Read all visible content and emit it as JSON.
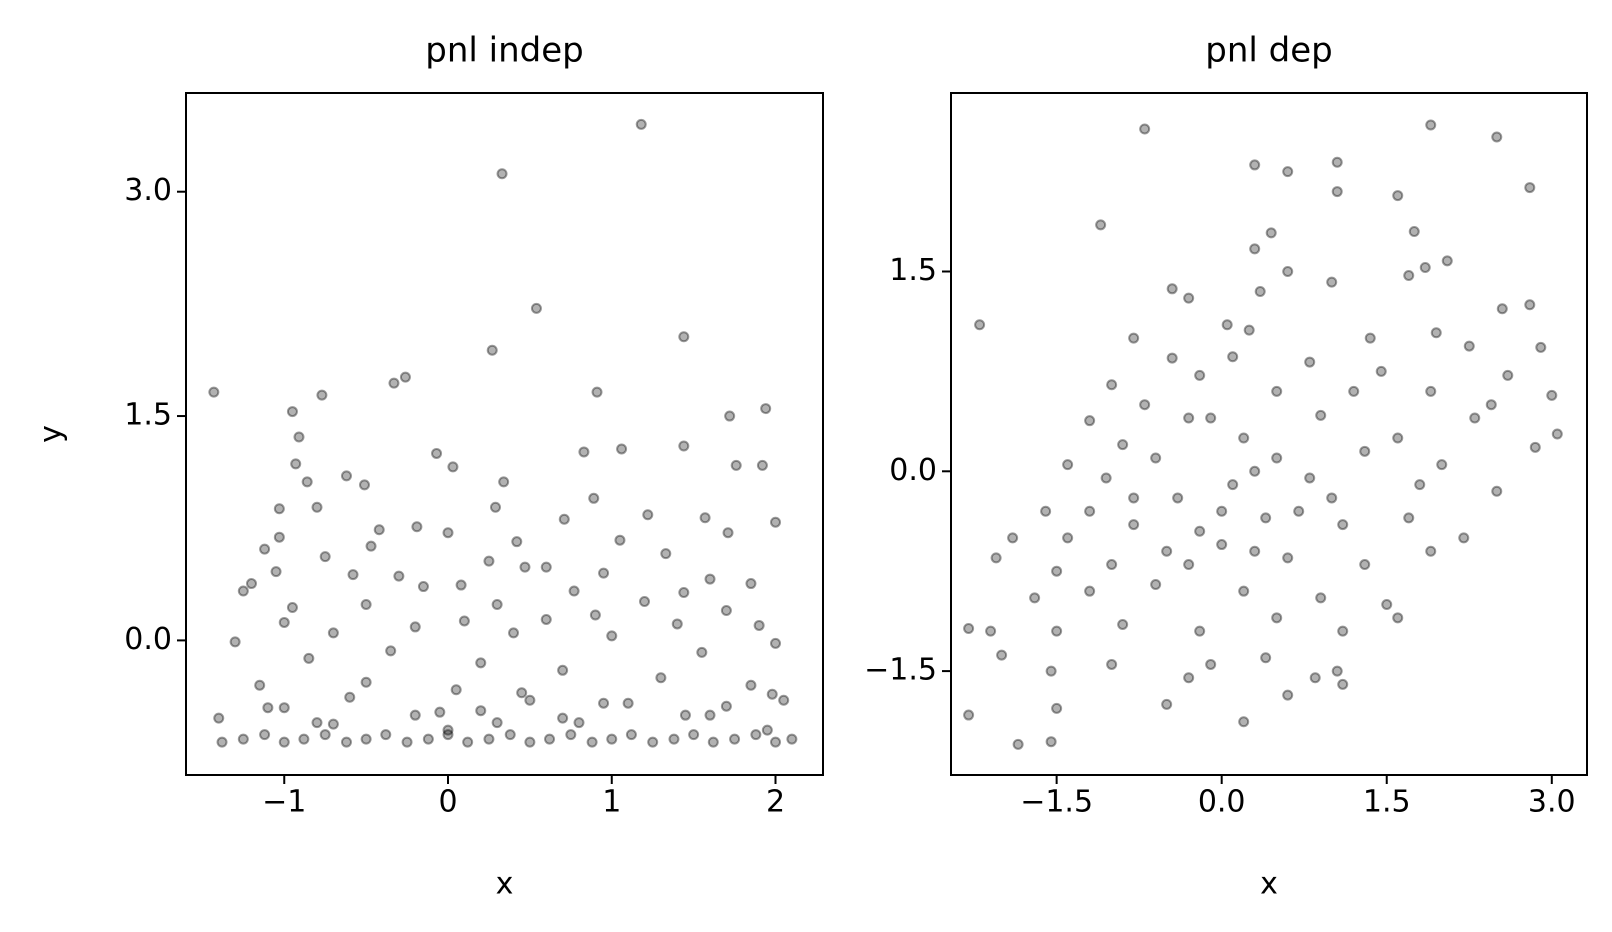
{
  "chart_data": [
    {
      "type": "scatter",
      "title": "pnl indep",
      "x_label": "x",
      "y_label": "y",
      "color": "#000000",
      "opacity": 0.3,
      "xlim": [
        -1.6,
        2.29
      ],
      "ylim": [
        -0.9,
        3.66
      ],
      "xticks": [
        {
          "value": -1,
          "label": "−1"
        },
        0,
        1,
        2
      ],
      "yticks": [
        {
          "value": 3.0,
          "label": "3.0"
        },
        {
          "value": 1.5,
          "label": "1.5"
        },
        {
          "value": 0.0,
          "label": "0.0"
        }
      ],
      "x": [
        1.18,
        0.33,
        0.54,
        1.44,
        0.27,
        -0.26,
        -0.33,
        -1.43,
        -0.77,
        0.91,
        1.94,
        -0.95,
        1.72,
        -0.91,
        1.44,
        1.06,
        0.83,
        -0.07,
        0.03,
        1.76,
        1.92,
        -0.93,
        -0.62,
        0.34,
        -0.86,
        -0.51,
        0.89,
        0.29,
        -1.03,
        -0.8,
        1.22,
        1.57,
        0.71,
        -1.03,
        0.0,
        -0.19,
        -0.42,
        2.0,
        1.71,
        -1.12,
        1.05,
        -0.47,
        0.42,
        1.33,
        -0.75,
        0.25,
        0.47,
        0.6,
        -1.05,
        1.85,
        -1.2,
        -0.3,
        0.95,
        1.6,
        -0.58,
        0.08,
        -1.25,
        1.44,
        -0.15,
        0.77,
        -0.95,
        0.3,
        -0.5,
        1.2,
        1.7,
        -1.0,
        0.6,
        0.1,
        -0.2,
        1.9,
        1.4,
        -0.7,
        0.4,
        0.9,
        -1.3,
        1.0,
        -0.35,
        0.2,
        1.55,
        2.0,
        -0.85,
        0.7,
        -1.15,
        1.3,
        -0.5,
        0.05,
        1.85,
        0.5,
        -1.0,
        1.1,
        -0.2,
        2.05,
        0.3,
        -1.4,
        1.6,
        0.8,
        -0.7,
        0.0,
        1.95,
        -1.38,
        -1.25,
        -1.12,
        -1.0,
        -0.88,
        -0.75,
        -0.62,
        -0.5,
        -0.38,
        -0.25,
        -0.12,
        0.0,
        0.12,
        0.25,
        0.38,
        0.5,
        0.62,
        0.75,
        0.88,
        1.0,
        1.12,
        1.25,
        1.38,
        1.5,
        1.62,
        1.75,
        1.88,
        2.0,
        2.1,
        -1.1,
        -0.6,
        -0.05,
        0.45,
        0.95,
        1.45,
        1.98,
        -0.8,
        0.2,
        0.7,
        1.7
      ],
      "y": [
        3.45,
        3.12,
        2.22,
        2.03,
        1.94,
        1.76,
        1.72,
        1.66,
        1.64,
        1.66,
        1.55,
        1.53,
        1.5,
        1.36,
        1.3,
        1.28,
        1.26,
        1.25,
        1.16,
        1.17,
        1.17,
        1.18,
        1.1,
        1.06,
        1.06,
        1.04,
        0.95,
        0.89,
        0.88,
        0.89,
        0.84,
        0.82,
        0.81,
        0.69,
        0.72,
        0.76,
        0.74,
        0.79,
        0.72,
        0.61,
        0.67,
        0.63,
        0.66,
        0.58,
        0.56,
        0.53,
        0.49,
        0.49,
        0.46,
        0.38,
        0.38,
        0.43,
        0.45,
        0.41,
        0.44,
        0.37,
        0.33,
        0.32,
        0.36,
        0.33,
        0.22,
        0.24,
        0.24,
        0.26,
        0.2,
        0.12,
        0.14,
        0.13,
        0.09,
        0.1,
        0.11,
        0.05,
        0.05,
        0.17,
        -0.01,
        0.03,
        -0.07,
        -0.15,
        -0.08,
        -0.02,
        -0.12,
        -0.2,
        -0.3,
        -0.25,
        -0.28,
        -0.33,
        -0.3,
        -0.4,
        -0.45,
        -0.42,
        -0.5,
        -0.4,
        -0.55,
        -0.52,
        -0.5,
        -0.55,
        -0.56,
        -0.6,
        -0.6,
        -0.68,
        -0.66,
        -0.63,
        -0.68,
        -0.66,
        -0.63,
        -0.68,
        -0.66,
        -0.63,
        -0.68,
        -0.66,
        -0.63,
        -0.68,
        -0.66,
        -0.63,
        -0.68,
        -0.66,
        -0.63,
        -0.68,
        -0.66,
        -0.63,
        -0.68,
        -0.66,
        -0.63,
        -0.68,
        -0.66,
        -0.63,
        -0.68,
        -0.66,
        -0.45,
        -0.38,
        -0.48,
        -0.35,
        -0.42,
        -0.5,
        -0.36,
        -0.55,
        -0.47,
        -0.52,
        -0.44
      ]
    },
    {
      "type": "scatter",
      "title": "pnl dep",
      "x_label": "x",
      "color": "#000000",
      "opacity": 0.3,
      "xlim": [
        -2.46,
        3.32
      ],
      "ylim": [
        -2.28,
        2.84
      ],
      "xticks": [
        {
          "value": -1.5,
          "label": "−1.5"
        },
        {
          "value": 0.0,
          "label": "0.0"
        },
        {
          "value": 1.5,
          "label": "1.5"
        },
        {
          "value": 3.0,
          "label": "3.0"
        }
      ],
      "yticks": [
        {
          "value": 1.5,
          "label": "1.5"
        },
        {
          "value": 0.0,
          "label": "0.0"
        },
        {
          "value": -1.5,
          "label": "−1.5"
        }
      ],
      "x": [
        -2.2,
        -0.7,
        1.9,
        2.5,
        0.3,
        1.05,
        0.6,
        2.8,
        1.05,
        1.6,
        -1.1,
        0.45,
        1.75,
        0.3,
        2.05,
        1.85,
        1.7,
        0.6,
        -0.45,
        -0.3,
        0.35,
        1.0,
        2.55,
        2.8,
        0.05,
        0.25,
        -0.8,
        1.35,
        1.95,
        2.25,
        2.9,
        -0.45,
        0.1,
        0.8,
        -1.0,
        -0.2,
        1.45,
        2.6,
        3.0,
        -0.7,
        0.5,
        1.2,
        1.9,
        2.45,
        -1.2,
        -0.3,
        0.9,
        2.3,
        3.05,
        -1.4,
        -0.9,
        0.2,
        1.6,
        2.85,
        -1.05,
        -0.6,
        0.5,
        1.3,
        2.0,
        -1.6,
        -1.2,
        -0.4,
        0.1,
        0.8,
        1.8,
        2.5,
        -1.9,
        -1.4,
        -0.8,
        -0.2,
        0.4,
        1.1,
        1.7,
        2.2,
        -2.05,
        -1.5,
        -1.0,
        -0.5,
        0.0,
        0.6,
        1.3,
        1.9,
        -2.3,
        -2.1,
        -1.7,
        -1.2,
        -0.6,
        0.2,
        0.9,
        1.5,
        -2.0,
        -1.5,
        -0.9,
        -0.2,
        0.5,
        1.1,
        1.6,
        -1.55,
        -1.0,
        -0.3,
        0.4,
        1.05,
        -2.3,
        -1.5,
        -0.5,
        0.2,
        0.6,
        1.1,
        -1.55,
        -1.85,
        -0.1,
        0.85,
        -0.8,
        0.3,
        0.0,
        -0.3,
        0.7,
        1.0,
        -0.1,
        0.3
      ],
      "y": [
        1.1,
        2.57,
        2.6,
        2.51,
        2.3,
        2.32,
        2.25,
        2.13,
        2.1,
        2.07,
        1.85,
        1.79,
        1.8,
        1.67,
        1.58,
        1.53,
        1.47,
        1.5,
        1.37,
        1.3,
        1.35,
        1.42,
        1.22,
        1.25,
        1.1,
        1.06,
        1.0,
        1.0,
        1.04,
        0.94,
        0.93,
        0.85,
        0.86,
        0.82,
        0.65,
        0.72,
        0.75,
        0.72,
        0.57,
        0.5,
        0.6,
        0.6,
        0.6,
        0.5,
        0.38,
        0.4,
        0.42,
        0.4,
        0.28,
        0.05,
        0.2,
        0.25,
        0.25,
        0.18,
        -0.05,
        0.1,
        0.1,
        0.15,
        0.05,
        -0.3,
        -0.3,
        -0.2,
        -0.1,
        -0.05,
        -0.1,
        -0.15,
        -0.5,
        -0.5,
        -0.4,
        -0.45,
        -0.35,
        -0.4,
        -0.35,
        -0.5,
        -0.65,
        -0.75,
        -0.7,
        -0.6,
        -0.55,
        -0.65,
        -0.7,
        -0.6,
        -1.18,
        -1.2,
        -0.95,
        -0.9,
        -0.85,
        -0.9,
        -0.95,
        -1.0,
        -1.38,
        -1.2,
        -1.15,
        -1.2,
        -1.1,
        -1.2,
        -1.1,
        -1.5,
        -1.45,
        -1.55,
        -1.4,
        -1.5,
        -1.83,
        -1.78,
        -1.75,
        -1.88,
        -1.68,
        -1.6,
        -2.03,
        -2.05,
        -1.45,
        -1.55,
        -0.2,
        -0.6,
        -0.3,
        -0.7,
        -0.3,
        -0.2,
        0.4,
        0.0
      ]
    }
  ]
}
